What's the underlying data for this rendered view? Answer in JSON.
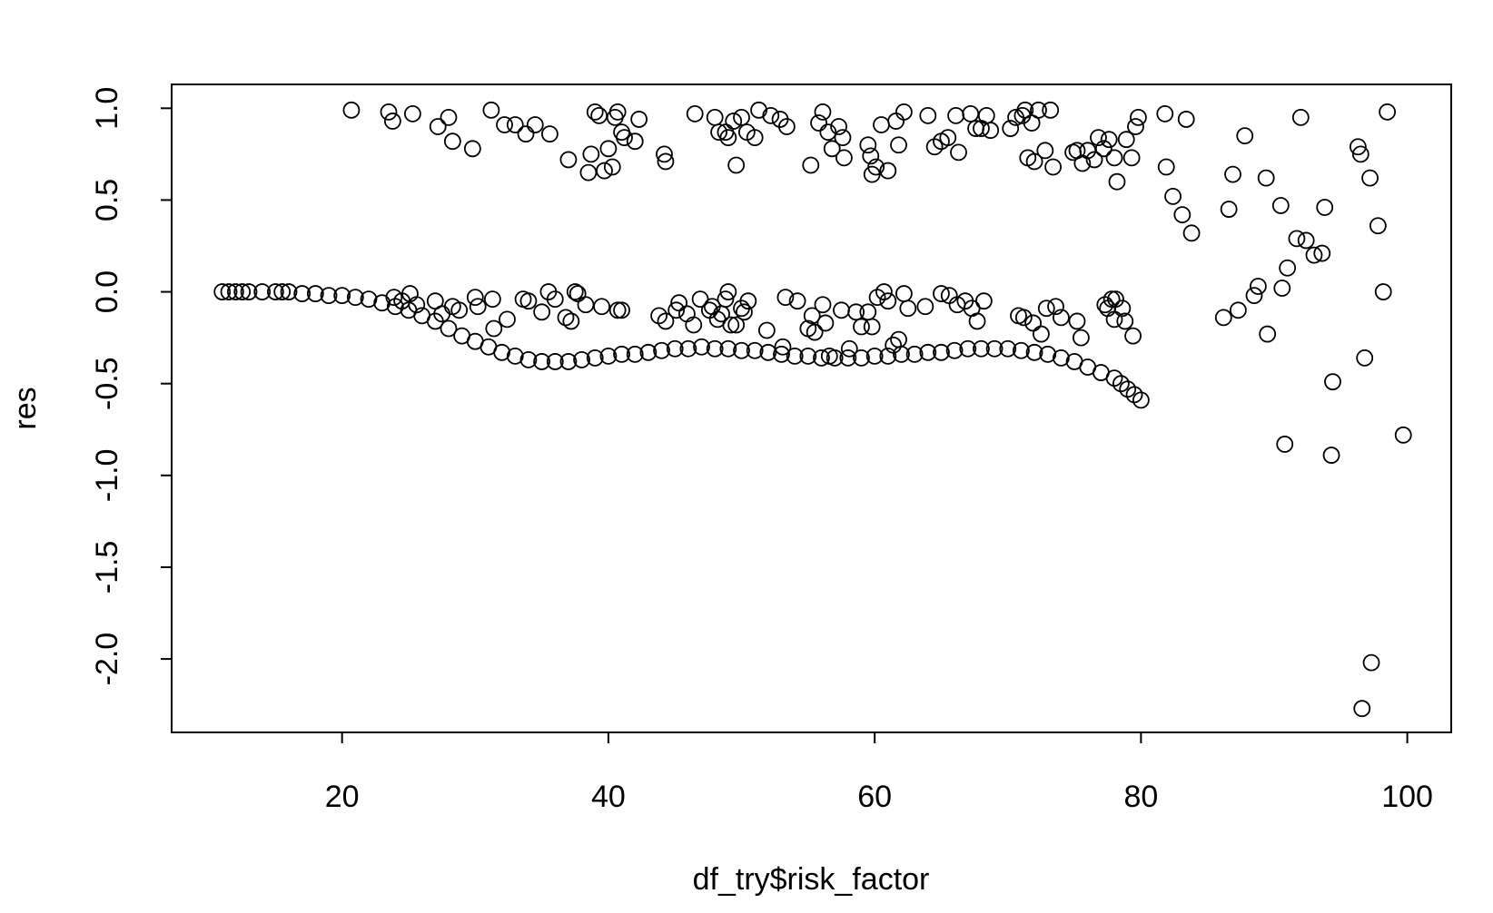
{
  "chart_data": {
    "type": "scatter",
    "x_label": "df_try$risk_factor",
    "y_label": "res",
    "xlim": [
      7.2,
      103.3
    ],
    "ylim": [
      -2.4,
      1.13
    ],
    "xticks": [
      20,
      40,
      60,
      80,
      100
    ],
    "yticks": [
      {
        "value": -2,
        "label": "-2.0"
      },
      -1.5,
      {
        "value": -1,
        "label": "-1.0"
      },
      -0.5,
      {
        "value": 0,
        "label": "0.0"
      },
      0.5,
      {
        "value": 1,
        "label": "1.0"
      }
    ],
    "color": "#000000",
    "x": [
      11,
      11.5,
      12,
      12.5,
      13,
      14,
      15,
      15.5,
      16,
      17,
      18,
      19,
      20,
      21,
      22,
      23,
      24,
      25,
      26,
      27,
      28,
      29,
      30,
      31,
      32,
      33,
      34,
      35,
      36,
      37,
      38,
      39,
      40,
      41,
      42,
      43,
      44,
      45,
      46,
      47,
      48,
      49,
      50,
      51,
      52,
      53,
      54,
      55,
      56,
      57,
      58,
      59,
      60,
      61,
      62,
      63,
      64,
      65,
      66,
      67,
      68,
      69,
      70,
      71,
      72,
      73,
      74,
      75,
      76,
      77,
      78,
      78.5,
      79,
      79.5,
      80,
      20.7,
      23.5,
      23.8,
      25.3,
      27.2,
      28,
      28.3,
      29.8,
      31.2,
      32.2,
      33,
      33.8,
      34.5,
      35.6,
      37,
      38.5,
      38.7,
      39,
      39.3,
      39.7,
      40,
      40.3,
      40.5,
      40.7,
      41,
      41.2,
      42,
      42.3,
      44.2,
      44.3,
      46.5,
      48,
      48.3,
      48.8,
      49,
      49.4,
      49.6,
      50,
      50.4,
      51,
      51.3,
      52.2,
      52.9,
      53.4,
      55.2,
      55.8,
      56.1,
      56.5,
      56.8,
      57.3,
      57.6,
      57.7,
      59.5,
      59.7,
      59.8,
      60.1,
      60.5,
      61,
      61.6,
      61.8,
      62.2,
      64,
      64.5,
      65,
      65.5,
      66.1,
      66.3,
      67.2,
      67.6,
      68,
      68.4,
      68.7,
      70.2,
      70.6,
      71.1,
      71.3,
      71.5,
      71.8,
      72,
      72.3,
      72.8,
      73.4,
      73.2,
      74.9,
      75.2,
      75.6,
      76,
      76.5,
      76.8,
      77.2,
      77.6,
      78,
      78.2,
      78.9,
      79.3,
      79.6,
      79.8,
      81.8,
      81.9,
      82.4,
      83.1,
      83.4,
      83.8,
      23.9,
      24.5,
      25.1,
      25.6,
      27,
      27.5,
      28.3,
      28.8,
      30,
      30.2,
      31.3,
      31.4,
      32.4,
      33.6,
      34,
      35,
      35.5,
      36,
      36.8,
      37.2,
      37.5,
      37.7,
      38.3,
      39.5,
      40.7,
      41,
      43.8,
      44.3,
      45.1,
      45.3,
      45.9,
      46.4,
      46.9,
      47.6,
      47.8,
      48.2,
      48.5,
      48.8,
      49,
      49.2,
      49.6,
      50,
      50.2,
      50.5,
      51.9,
      53.1,
      53.3,
      54.2,
      55,
      55.3,
      55.5,
      56.1,
      56.3,
      56.6,
      57.5,
      58.1,
      58.6,
      59,
      59.5,
      59.8,
      60.2,
      60.7,
      61,
      61.4,
      61.8,
      62.2,
      62.5,
      63.8,
      65,
      65.6,
      66.2,
      66.8,
      67.3,
      67.7,
      68.2,
      70.8,
      71.2,
      71.9,
      72.5,
      72.9,
      73.6,
      74,
      75.2,
      75.5,
      77.3,
      77.5,
      77.8,
      78,
      78.1,
      78.6,
      78.8,
      79.4,
      86.2,
      86.6,
      86.9,
      87.3,
      87.8,
      88.5,
      88.8,
      89.4,
      89.5,
      90.5,
      90.6,
      90.8,
      91,
      91.7,
      92,
      92.4,
      93,
      93.6,
      93.8,
      94.3,
      94.4,
      96.3,
      96.5,
      96.6,
      96.8,
      97.2,
      97.3,
      97.8,
      98.2,
      98.5,
      99.7
    ],
    "values": [
      0,
      0,
      0,
      0,
      0,
      0,
      0,
      0,
      0,
      -0.01,
      -0.01,
      -0.02,
      -0.02,
      -0.03,
      -0.04,
      -0.06,
      -0.08,
      -0.1,
      -0.13,
      -0.16,
      -0.2,
      -0.24,
      -0.27,
      -0.3,
      -0.33,
      -0.35,
      -0.37,
      -0.38,
      -0.38,
      -0.38,
      -0.37,
      -0.36,
      -0.35,
      -0.34,
      -0.34,
      -0.33,
      -0.32,
      -0.31,
      -0.31,
      -0.3,
      -0.31,
      -0.31,
      -0.32,
      -0.32,
      -0.33,
      -0.34,
      -0.35,
      -0.35,
      -0.36,
      -0.36,
      -0.36,
      -0.36,
      -0.35,
      -0.35,
      -0.34,
      -0.34,
      -0.33,
      -0.33,
      -0.32,
      -0.31,
      -0.31,
      -0.31,
      -0.31,
      -0.32,
      -0.33,
      -0.34,
      -0.36,
      -0.38,
      -0.41,
      -0.44,
      -0.47,
      -0.5,
      -0.53,
      -0.56,
      -0.59,
      0.99,
      0.98,
      0.93,
      0.97,
      0.9,
      0.95,
      0.82,
      0.78,
      0.99,
      0.91,
      0.91,
      0.86,
      0.91,
      0.86,
      0.72,
      0.65,
      0.75,
      0.98,
      0.96,
      0.66,
      0.78,
      0.68,
      0.95,
      0.98,
      0.87,
      0.84,
      0.82,
      0.94,
      0.75,
      0.71,
      0.97,
      0.95,
      0.87,
      0.87,
      0.84,
      0.93,
      0.69,
      0.95,
      0.87,
      0.84,
      0.99,
      0.96,
      0.94,
      0.9,
      0.69,
      0.92,
      0.98,
      0.87,
      0.78,
      0.9,
      0.84,
      0.73,
      0.8,
      0.74,
      0.64,
      0.68,
      0.91,
      0.66,
      0.93,
      0.8,
      0.98,
      0.96,
      0.79,
      0.82,
      0.84,
      0.96,
      0.76,
      0.97,
      0.89,
      0.89,
      0.96,
      0.88,
      0.89,
      0.95,
      0.96,
      0.99,
      0.73,
      0.92,
      0.71,
      0.99,
      0.77,
      0.68,
      0.99,
      0.76,
      0.77,
      0.7,
      0.77,
      0.72,
      0.84,
      0.78,
      0.83,
      0.73,
      0.6,
      0.83,
      0.73,
      0.9,
      0.95,
      0.97,
      0.68,
      0.52,
      0.42,
      0.94,
      0.32,
      -0.03,
      -0.05,
      -0.01,
      -0.07,
      -0.05,
      -0.12,
      -0.08,
      -0.1,
      -0.03,
      -0.08,
      -0.04,
      -0.2,
      -0.15,
      -0.04,
      -0.05,
      -0.11,
      0,
      -0.04,
      -0.14,
      -0.16,
      0,
      -0.01,
      -0.07,
      -0.08,
      -0.1,
      -0.1,
      -0.13,
      -0.16,
      -0.1,
      -0.06,
      -0.12,
      -0.18,
      -0.04,
      -0.1,
      -0.08,
      -0.15,
      -0.12,
      -0.04,
      0,
      -0.18,
      -0.18,
      -0.09,
      -0.11,
      -0.05,
      -0.21,
      -0.3,
      -0.03,
      -0.05,
      -0.2,
      -0.13,
      -0.22,
      -0.07,
      -0.17,
      -0.35,
      -0.1,
      -0.31,
      -0.11,
      -0.19,
      -0.11,
      -0.19,
      -0.03,
      0,
      -0.05,
      -0.29,
      -0.26,
      -0.01,
      -0.09,
      -0.08,
      -0.01,
      -0.02,
      -0.07,
      -0.05,
      -0.09,
      -0.16,
      -0.05,
      -0.13,
      -0.14,
      -0.17,
      -0.23,
      -0.09,
      -0.08,
      -0.14,
      -0.16,
      -0.25,
      -0.07,
      -0.09,
      -0.04,
      -0.15,
      -0.04,
      -0.09,
      -0.16,
      -0.24,
      -0.14,
      0.45,
      0.64,
      -0.1,
      0.85,
      -0.02,
      0.03,
      0.62,
      -0.23,
      0.47,
      0.02,
      -0.83,
      0.13,
      0.29,
      0.95,
      0.28,
      0.2,
      0.21,
      0.46,
      -0.89,
      -0.49,
      0.79,
      0.75,
      -2.27,
      -0.36,
      0.62,
      -2.02,
      0.36,
      0,
      0.98,
      -0.78
    ]
  }
}
